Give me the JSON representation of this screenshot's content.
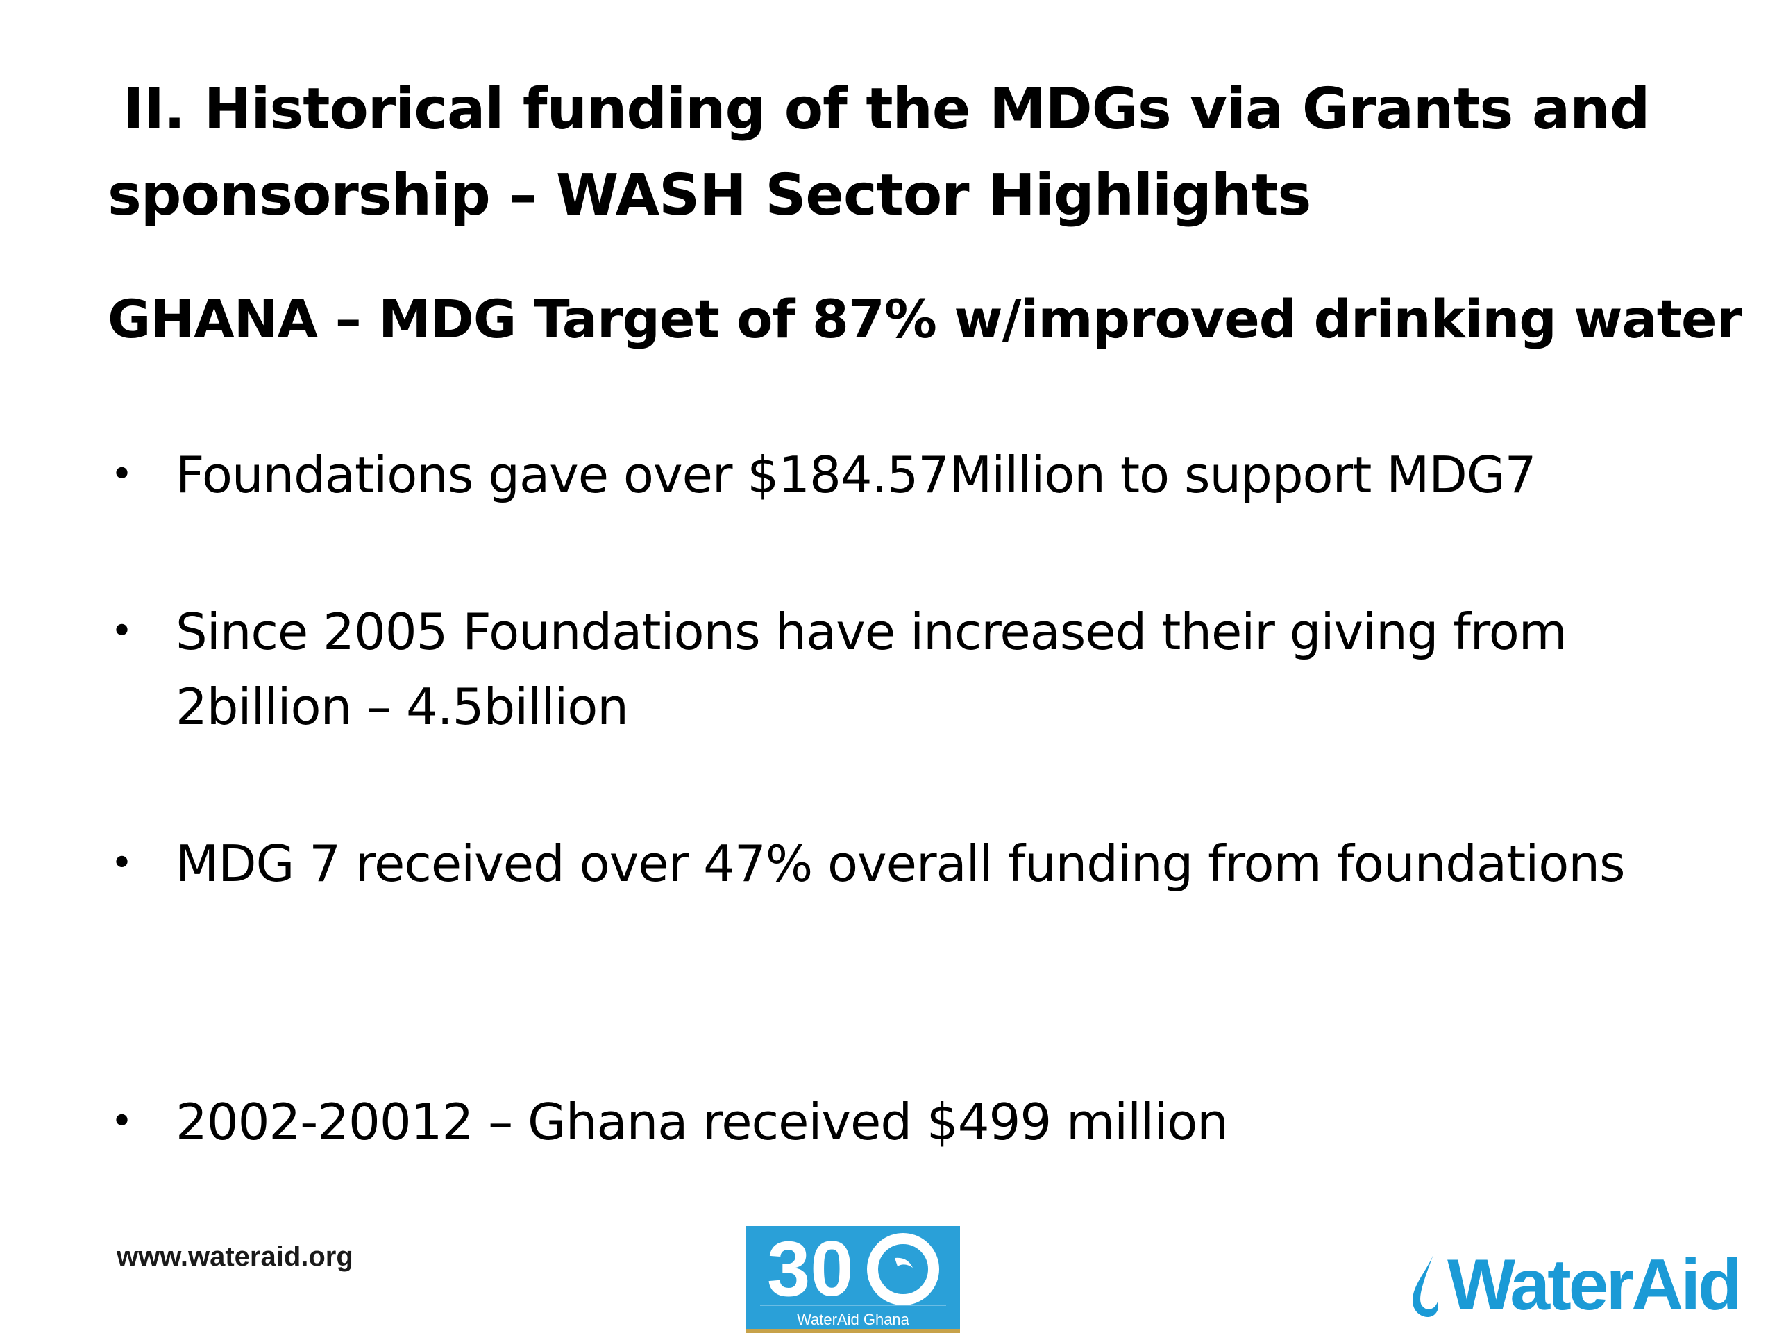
{
  "title": {
    "line1": "II. Historical funding of the MDGs via Grants and",
    "line2": "sponsorship – WASH Sector Highlights"
  },
  "subtitle": "GHANA – MDG Target of 87% w/improved drinking water",
  "bullets": [
    {
      "marker": "•",
      "text": "Foundations gave over $184.57Million to support MDG7"
    },
    {
      "marker": "•",
      "text": "Since 2005 Foundations have increased their giving from 2billion – 4.5billion"
    },
    {
      "marker": "•",
      "text": "MDG 7 received over 47% overall funding from foundations"
    },
    {
      "marker": "•",
      "text": "2002-20012 – Ghana received $499 million"
    }
  ],
  "footer": {
    "url": "www.wateraid.org",
    "anniversary_logo": {
      "number": "30",
      "caption": "WaterAid Ghana"
    },
    "brand_logo": {
      "text": "WaterAid",
      "icon": "water-drop-icon",
      "color": "#1b9ad6"
    }
  },
  "colors": {
    "background": "#ffffff",
    "text": "#000000",
    "logo_blue": "#2aa0d8"
  }
}
